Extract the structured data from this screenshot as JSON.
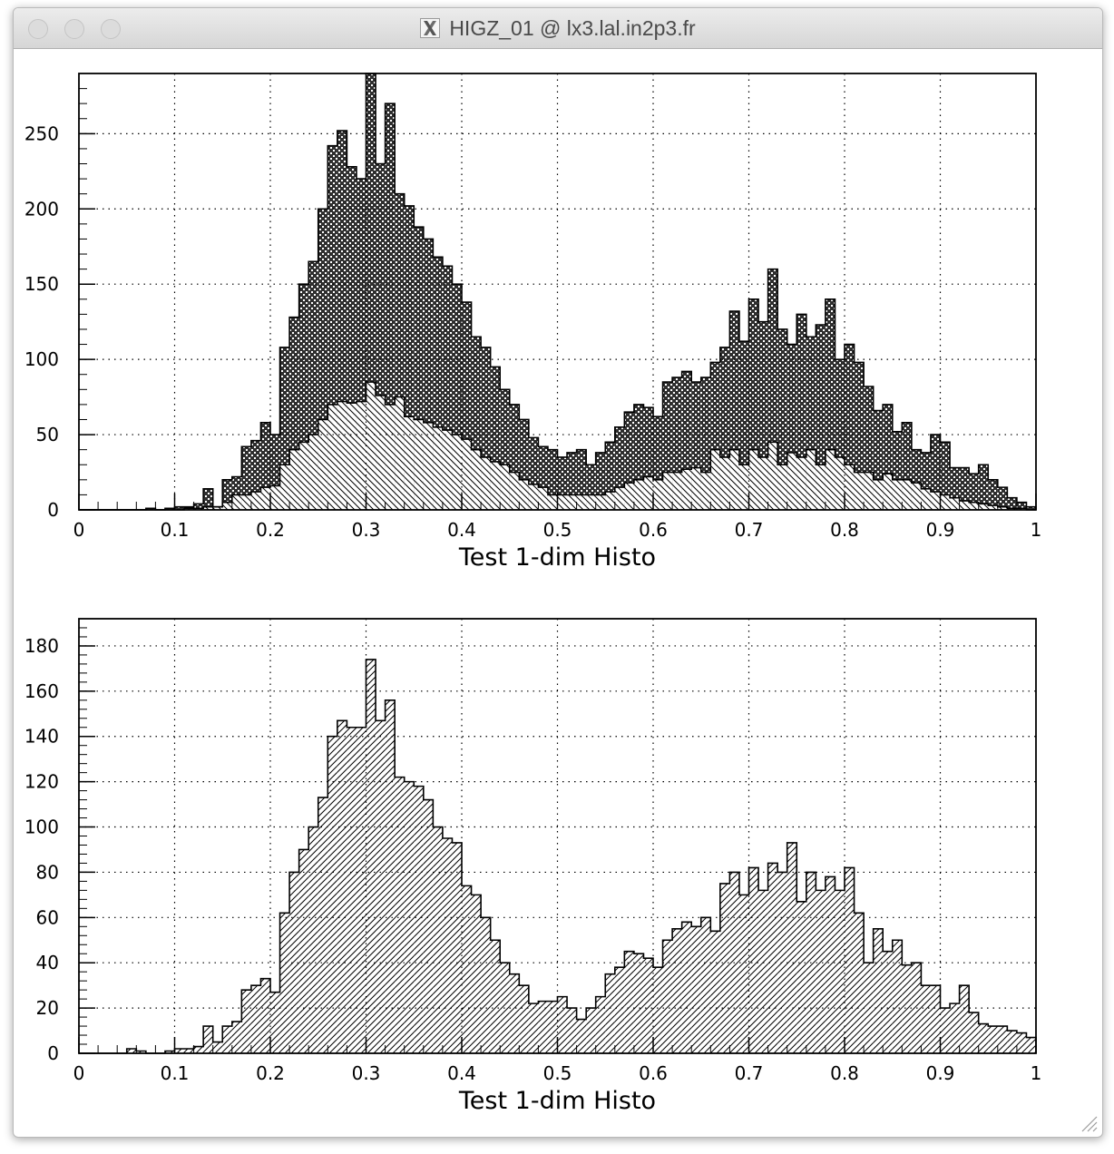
{
  "window": {
    "title": "HIGZ_01 @ lx3.lal.in2p3.fr"
  },
  "icons": {
    "app": "x11-icon",
    "resize": "resize-grip-icon",
    "controls": [
      "close-icon",
      "minimize-icon",
      "zoom-icon"
    ]
  },
  "colors": {
    "frame": "#000000",
    "fill_dark": "#3a3a3a",
    "background": "#ffffff"
  },
  "chart_data": [
    {
      "type": "bar",
      "style": "step-histogram",
      "title": "",
      "xlabel": "Test 1-dim Histo",
      "ylabel": "",
      "xlim": [
        0,
        1
      ],
      "ylim": [
        0,
        290
      ],
      "xticks": [
        "0",
        "0.1",
        "0.2",
        "0.3",
        "0.4",
        "0.5",
        "0.6",
        "0.7",
        "0.8",
        "0.9",
        "1"
      ],
      "yticks": [
        "0",
        "50",
        "100",
        "150",
        "200",
        "250"
      ],
      "grid": true,
      "legend": "none",
      "bins": 100,
      "series": [
        {
          "fill": "crosshatch-dark",
          "values": [
            0,
            0,
            0,
            0,
            0,
            0,
            0,
            1,
            0,
            1,
            2,
            2,
            4,
            14,
            2,
            20,
            22,
            42,
            46,
            58,
            50,
            108,
            128,
            150,
            165,
            200,
            242,
            252,
            228,
            220,
            290,
            230,
            270,
            210,
            202,
            188,
            180,
            168,
            162,
            150,
            138,
            115,
            108,
            95,
            80,
            70,
            60,
            48,
            42,
            40,
            35,
            38,
            40,
            30,
            38,
            45,
            55,
            65,
            70,
            68,
            62,
            85,
            88,
            92,
            85,
            88,
            98,
            108,
            132,
            112,
            140,
            125,
            160,
            120,
            110,
            130,
            115,
            123,
            140,
            100,
            110,
            98,
            82,
            66,
            70,
            52,
            58,
            40,
            38,
            50,
            45,
            28,
            28,
            24,
            30,
            20,
            15,
            8,
            5,
            2
          ]
        },
        {
          "fill": "hatch-backslash",
          "values": [
            0,
            0,
            0,
            0,
            0,
            0,
            0,
            0,
            0,
            0,
            0,
            1,
            1,
            2,
            2,
            5,
            10,
            10,
            12,
            15,
            16,
            30,
            40,
            45,
            50,
            60,
            70,
            72,
            71,
            72,
            85,
            76,
            70,
            75,
            62,
            60,
            58,
            55,
            53,
            50,
            47,
            40,
            35,
            32,
            30,
            25,
            20,
            17,
            15,
            10,
            10,
            10,
            10,
            10,
            10,
            12,
            15,
            18,
            20,
            22,
            20,
            25,
            25,
            27,
            28,
            25,
            40,
            35,
            40,
            30,
            40,
            35,
            45,
            30,
            38,
            35,
            40,
            30,
            40,
            35,
            30,
            25,
            25,
            20,
            24,
            20,
            20,
            18,
            14,
            12,
            10,
            8,
            6,
            5,
            4,
            3,
            2,
            1,
            1,
            0
          ]
        }
      ]
    },
    {
      "type": "bar",
      "style": "step-histogram",
      "title": "",
      "xlabel": "Test 1-dim Histo",
      "ylabel": "",
      "xlim": [
        0,
        1
      ],
      "ylim": [
        0,
        192
      ],
      "xticks": [
        "0",
        "0.1",
        "0.2",
        "0.3",
        "0.4",
        "0.5",
        "0.6",
        "0.7",
        "0.8",
        "0.9",
        "1"
      ],
      "yticks": [
        "0",
        "20",
        "40",
        "60",
        "80",
        "100",
        "120",
        "140",
        "160",
        "180"
      ],
      "grid": true,
      "legend": "none",
      "bins": 100,
      "series": [
        {
          "fill": "hatch-slash",
          "values": [
            0,
            0,
            0,
            0,
            0,
            2,
            1,
            0,
            0,
            1,
            2,
            2,
            3,
            12,
            5,
            12,
            14,
            28,
            30,
            33,
            27,
            62,
            80,
            90,
            100,
            113,
            140,
            147,
            144,
            144,
            174,
            147,
            156,
            122,
            120,
            118,
            112,
            100,
            95,
            93,
            74,
            70,
            60,
            50,
            40,
            35,
            30,
            22,
            23,
            23,
            25,
            20,
            15,
            20,
            25,
            35,
            38,
            45,
            44,
            42,
            38,
            50,
            55,
            58,
            56,
            60,
            54,
            75,
            80,
            70,
            82,
            72,
            84,
            80,
            93,
            67,
            80,
            72,
            78,
            72,
            82,
            62,
            40,
            55,
            45,
            50,
            39,
            40,
            30,
            30,
            20,
            22,
            30,
            18,
            13,
            12,
            12,
            10,
            9,
            7
          ]
        }
      ]
    }
  ]
}
